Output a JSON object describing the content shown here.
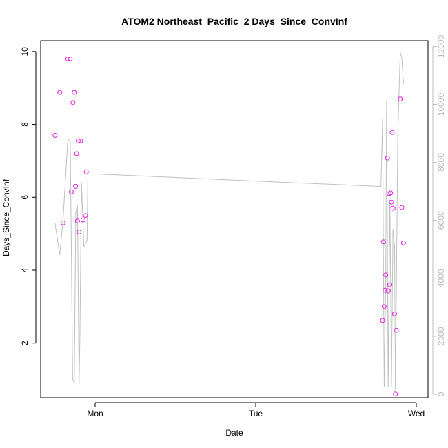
{
  "chart_data": {
    "type": "scatter",
    "title": "ATOM2 Northeast_Pacific_2 Days_Since_ConvInf",
    "xlabel": "Date",
    "ylabel": "Days_Since_ConvInf",
    "x_ticks": [
      "Mon",
      "Tue",
      "Wed"
    ],
    "y_ticks": [
      "2",
      "4",
      "6",
      "8",
      "10"
    ],
    "y2_ticks": [
      "0",
      "2000",
      "4000",
      "6000",
      "8000",
      "10000",
      "12000"
    ],
    "ylim": [
      0.5,
      10.3
    ],
    "y2lim": [
      -120,
      12200
    ],
    "grid": false,
    "colors": {
      "points": "#e619e6",
      "line": "#bfbfbf",
      "right_axis": "#bdbdbd"
    },
    "points": [
      {
        "x": -0.25,
        "y": 7.7
      },
      {
        "x": -0.22,
        "y": 8.88
      },
      {
        "x": -0.2,
        "y": 5.3
      },
      {
        "x": -0.17,
        "y": 9.8
      },
      {
        "x": -0.155,
        "y": 9.8
      },
      {
        "x": -0.148,
        "y": 6.15
      },
      {
        "x": -0.138,
        "y": 8.6
      },
      {
        "x": -0.13,
        "y": 8.88
      },
      {
        "x": -0.122,
        "y": 6.3
      },
      {
        "x": -0.115,
        "y": 7.2
      },
      {
        "x": -0.11,
        "y": 5.35
      },
      {
        "x": -0.105,
        "y": 7.55
      },
      {
        "x": -0.1,
        "y": 5.05
      },
      {
        "x": -0.09,
        "y": 7.55
      },
      {
        "x": -0.075,
        "y": 5.38
      },
      {
        "x": -0.06,
        "y": 5.5
      },
      {
        "x": -0.055,
        "y": 6.7
      },
      {
        "x": 1.79,
        "y": 2.62
      },
      {
        "x": 1.795,
        "y": 4.78
      },
      {
        "x": 1.8,
        "y": 3.0
      },
      {
        "x": 1.805,
        "y": 3.45
      },
      {
        "x": 1.81,
        "y": 3.87
      },
      {
        "x": 1.82,
        "y": 7.08
      },
      {
        "x": 1.825,
        "y": 3.43
      },
      {
        "x": 1.83,
        "y": 6.1
      },
      {
        "x": 1.835,
        "y": 3.6
      },
      {
        "x": 1.84,
        "y": 6.12
      },
      {
        "x": 1.845,
        "y": 5.87
      },
      {
        "x": 1.85,
        "y": 7.78
      },
      {
        "x": 1.855,
        "y": 5.7
      },
      {
        "x": 1.865,
        "y": 2.8
      },
      {
        "x": 1.87,
        "y": 0.6
      },
      {
        "x": 1.875,
        "y": 2.35
      },
      {
        "x": 1.9,
        "y": 8.7
      },
      {
        "x": 1.91,
        "y": 5.72
      },
      {
        "x": 1.92,
        "y": 4.75
      }
    ],
    "line_series": [
      {
        "x": -0.25,
        "y": 5900
      },
      {
        "x": -0.22,
        "y": 4800
      },
      {
        "x": -0.2,
        "y": 6000
      },
      {
        "x": -0.17,
        "y": 8800
      },
      {
        "x": -0.155,
        "y": 8750
      },
      {
        "x": -0.14,
        "y": 500
      },
      {
        "x": -0.13,
        "y": 400
      },
      {
        "x": -0.12,
        "y": 6300
      },
      {
        "x": -0.11,
        "y": 6500
      },
      {
        "x": -0.1,
        "y": 350
      },
      {
        "x": -0.095,
        "y": 2000
      },
      {
        "x": -0.085,
        "y": 7300
      },
      {
        "x": -0.07,
        "y": 5100
      },
      {
        "x": -0.05,
        "y": 5300
      },
      {
        "x": -0.045,
        "y": 7600
      },
      {
        "x": 0.0,
        "y": 7600
      },
      {
        "x": 1.77,
        "y": 7170
      },
      {
        "x": 1.78,
        "y": 7170
      },
      {
        "x": 1.79,
        "y": 9500
      },
      {
        "x": 1.8,
        "y": 250
      },
      {
        "x": 1.81,
        "y": 4000
      },
      {
        "x": 1.815,
        "y": 10100
      },
      {
        "x": 1.825,
        "y": 250
      },
      {
        "x": 1.835,
        "y": 6700
      },
      {
        "x": 1.84,
        "y": 4200
      },
      {
        "x": 1.845,
        "y": 250
      },
      {
        "x": 1.855,
        "y": 5700
      },
      {
        "x": 1.865,
        "y": 5100
      },
      {
        "x": 1.87,
        "y": 150
      },
      {
        "x": 1.885,
        "y": 9000
      },
      {
        "x": 1.9,
        "y": 11800
      },
      {
        "x": 1.91,
        "y": 11600
      },
      {
        "x": 1.92,
        "y": 10700
      }
    ]
  }
}
